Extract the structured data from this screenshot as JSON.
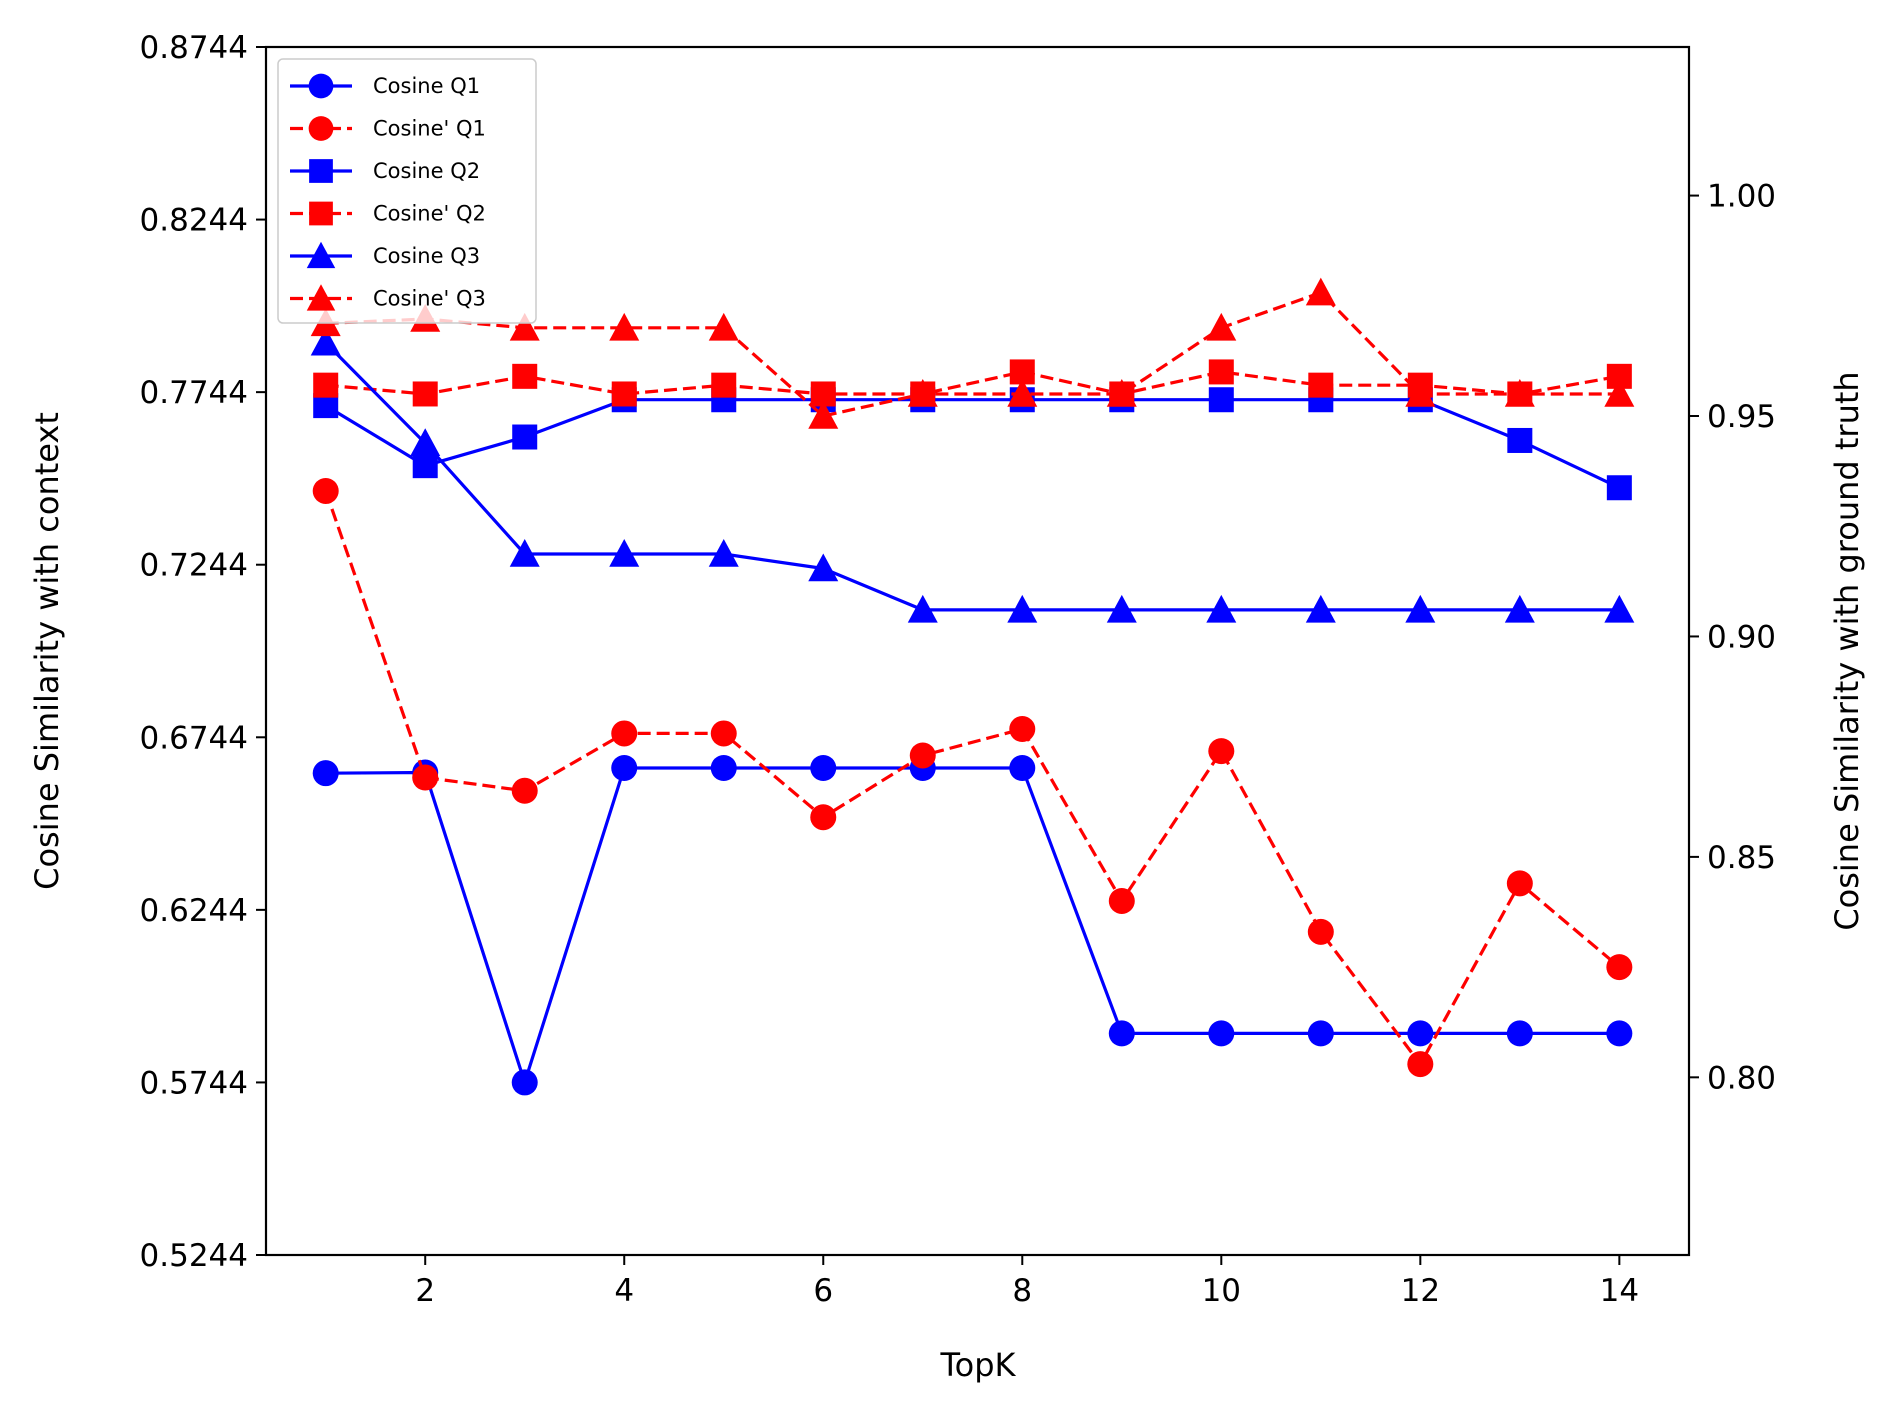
{
  "chart_data": {
    "type": "line",
    "xlabel": "TopK",
    "ylabel_left": "Cosine Similarity with context",
    "ylabel_right": "Cosine Similarity with ground truth",
    "x": [
      1,
      2,
      3,
      4,
      5,
      6,
      7,
      8,
      9,
      10,
      11,
      12,
      13,
      14
    ],
    "xlim": [
      0.4,
      14.7
    ],
    "ylim_left": [
      0.5244,
      0.8744
    ],
    "ylim_right": [
      0.7597,
      1.0337
    ],
    "x_ticks": [
      2,
      4,
      6,
      8,
      10,
      12,
      14
    ],
    "x_tick_labels": [
      "2",
      "4",
      "6",
      "8",
      "10",
      "12",
      "14"
    ],
    "y_ticks_left": [
      0.5244,
      0.5744,
      0.6244,
      0.6744,
      0.7244,
      0.7744,
      0.8244,
      0.8744
    ],
    "y_tick_labels_left": [
      "0.5244",
      "0.5744",
      "0.6244",
      "0.6744",
      "0.7244",
      "0.7744",
      "0.8244",
      "0.8744"
    ],
    "y_ticks_right": [
      0.8,
      0.85,
      0.9,
      0.95,
      1.0
    ],
    "y_tick_labels_right": [
      "0.80",
      "0.85",
      "0.90",
      "0.95",
      "1.00"
    ],
    "grid": false,
    "legend_position": "top-left",
    "series": [
      {
        "name": "Cosine Q1",
        "axis": "left",
        "color": "#0000ff",
        "dash": "solid",
        "marker": "circle",
        "values": [
          0.664,
          0.6642,
          0.5744,
          0.6655,
          0.6655,
          0.6655,
          0.6655,
          0.6655,
          0.5886,
          0.5886,
          0.5886,
          0.5886,
          0.5886,
          0.5886
        ]
      },
      {
        "name": "Cosine' Q1",
        "axis": "right",
        "color": "#ff0000",
        "dash": "dashed",
        "marker": "circle",
        "values": [
          0.933,
          0.868,
          0.865,
          0.878,
          0.878,
          0.859,
          0.873,
          0.879,
          0.84,
          0.874,
          0.833,
          0.803,
          0.844,
          0.825
        ]
      },
      {
        "name": "Cosine Q2",
        "axis": "left",
        "color": "#0000ff",
        "dash": "solid",
        "marker": "square",
        "values": [
          0.7705,
          0.7531,
          0.7614,
          0.7722,
          0.7722,
          0.7722,
          0.7722,
          0.7722,
          0.7722,
          0.7722,
          0.7722,
          0.7722,
          0.7604,
          0.7467
        ]
      },
      {
        "name": "Cosine' Q2",
        "axis": "right",
        "color": "#ff0000",
        "dash": "dashed",
        "marker": "square",
        "values": [
          0.957,
          0.955,
          0.959,
          0.955,
          0.957,
          0.955,
          0.955,
          0.96,
          0.955,
          0.96,
          0.957,
          0.957,
          0.955,
          0.959
        ]
      },
      {
        "name": "Cosine Q3",
        "axis": "left",
        "color": "#0000ff",
        "dash": "solid",
        "marker": "triangle",
        "values": [
          0.7887,
          0.7596,
          0.7275,
          0.7275,
          0.7275,
          0.7233,
          0.7113,
          0.7113,
          0.7113,
          0.7113,
          0.7113,
          0.7113,
          0.7113,
          0.7113
        ]
      },
      {
        "name": "Cosine' Q3",
        "axis": "right",
        "color": "#ff0000",
        "dash": "dashed",
        "marker": "triangle",
        "values": [
          0.971,
          0.972,
          0.97,
          0.97,
          0.97,
          0.95,
          0.955,
          0.955,
          0.955,
          0.97,
          0.978,
          0.955,
          0.955,
          0.955
        ]
      }
    ]
  }
}
